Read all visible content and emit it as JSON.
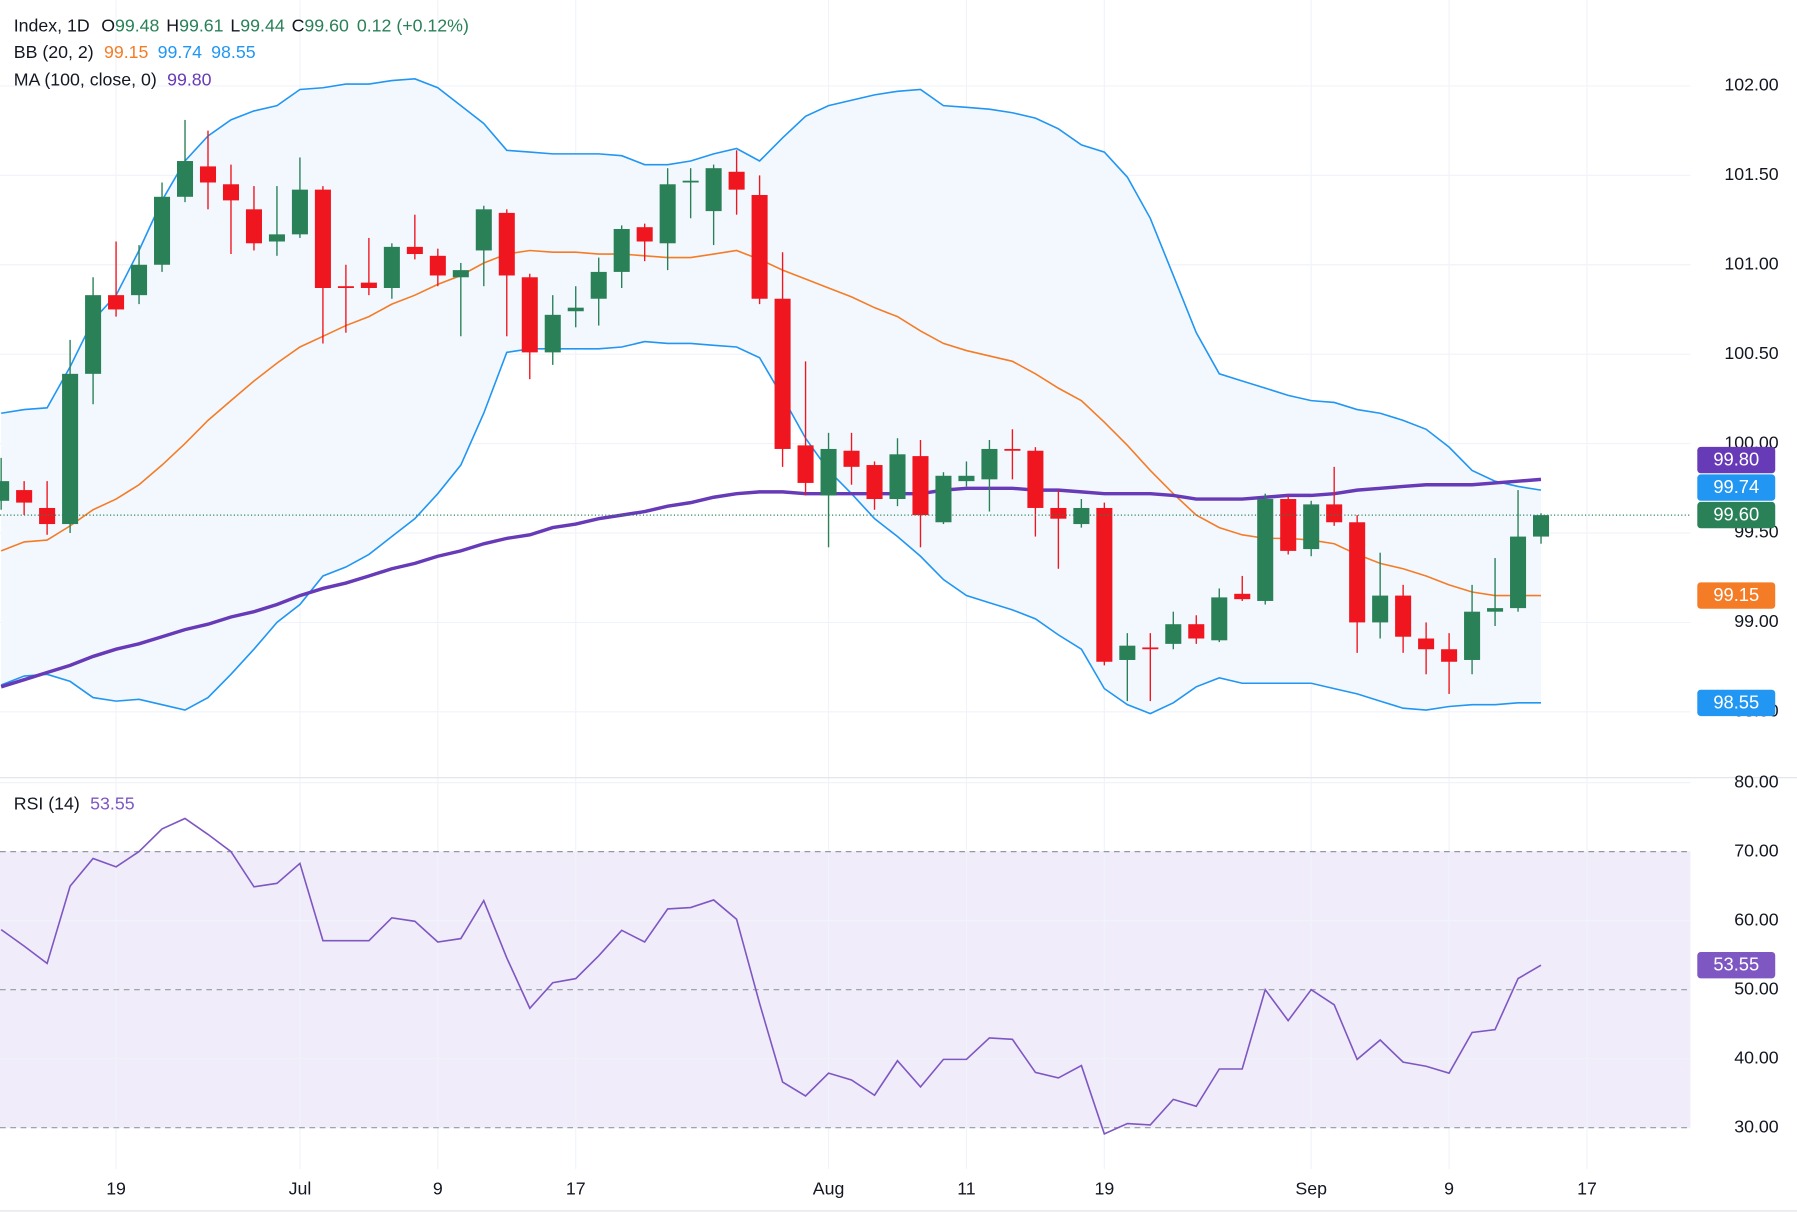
{
  "header": {
    "symbol": "Index, 1D",
    "ohlc": [
      {
        "key": "O",
        "value": "99.48"
      },
      {
        "key": "H",
        "value": "99.61"
      },
      {
        "key": "L",
        "value": "99.44"
      },
      {
        "key": "C",
        "value": "99.60"
      }
    ],
    "change": "0.12 (+0.12%)"
  },
  "chart_data": [
    {
      "type": "candlestick",
      "xlim": [
        -0.05,
        73.5
      ],
      "xticks": [
        {
          "value": 5,
          "label": "19"
        },
        {
          "value": 13,
          "label": "Jul"
        },
        {
          "value": 19,
          "label": "9"
        },
        {
          "value": 25,
          "label": "17"
        },
        {
          "value": 36,
          "label": "Aug"
        },
        {
          "value": 42,
          "label": "11"
        },
        {
          "value": 48,
          "label": "19"
        },
        {
          "value": 57,
          "label": "Sep"
        },
        {
          "value": 63,
          "label": "9"
        },
        {
          "value": 69,
          "label": "17"
        }
      ],
      "ylim": [
        98.135,
        102.48
      ],
      "yticks": [
        {
          "value": 98.5,
          "label": "98.50"
        },
        {
          "value": 99,
          "label": "99.00"
        },
        {
          "value": 99.5,
          "label": "99.50"
        },
        {
          "value": 100,
          "label": "100.00"
        },
        {
          "value": 100.5,
          "label": "100.50"
        },
        {
          "value": 101,
          "label": "101.00"
        },
        {
          "value": 101.5,
          "label": "101.50"
        },
        {
          "value": 102,
          "label": "102.00"
        }
      ],
      "grid": true,
      "up_color": "#2a8158",
      "down_color": "#f0161f",
      "last_price_line": true,
      "open": [
        99.68,
        99.74,
        99.64,
        99.55,
        100.39,
        100.83,
        100.83,
        101.0,
        101.38,
        101.55,
        101.45,
        101.31,
        101.13,
        101.17,
        101.42,
        100.88,
        100.9,
        100.87,
        101.1,
        101.05,
        100.93,
        101.08,
        101.29,
        100.93,
        100.51,
        100.74,
        100.81,
        100.96,
        101.21,
        101.12,
        101.46,
        101.3,
        101.52,
        101.39,
        100.81,
        99.99,
        99.71,
        99.96,
        99.88,
        99.69,
        99.93,
        99.56,
        99.79,
        99.8,
        99.97,
        99.96,
        99.64,
        99.55,
        99.64,
        98.79,
        98.86,
        98.88,
        98.99,
        98.9,
        99.16,
        99.12,
        99.69,
        99.41,
        99.66,
        99.56,
        99.0,
        99.15,
        98.91,
        98.85,
        98.79,
        99.06,
        99.08,
        99.48
      ],
      "high": [
        99.92,
        99.79,
        99.79,
        100.58,
        100.93,
        101.13,
        101.11,
        101.46,
        101.81,
        101.75,
        101.56,
        101.44,
        101.44,
        101.6,
        101.44,
        101.0,
        101.15,
        101.12,
        101.28,
        101.09,
        101.01,
        101.33,
        101.31,
        100.95,
        100.83,
        100.88,
        101.04,
        101.22,
        101.23,
        101.54,
        101.54,
        101.56,
        101.64,
        101.5,
        101.07,
        100.46,
        100.06,
        100.06,
        99.9,
        100.03,
        100.02,
        99.84,
        99.9,
        100.02,
        100.08,
        99.98,
        99.74,
        99.69,
        99.67,
        98.94,
        98.94,
        99.06,
        99.04,
        99.19,
        99.26,
        99.72,
        99.71,
        99.68,
        99.87,
        99.6,
        99.39,
        99.21,
        99.0,
        98.94,
        99.21,
        99.36,
        99.74,
        99.61
      ],
      "low": [
        99.63,
        99.6,
        99.49,
        99.5,
        100.22,
        100.71,
        100.78,
        100.96,
        101.35,
        101.31,
        101.06,
        101.08,
        101.05,
        101.15,
        100.56,
        100.62,
        100.83,
        100.81,
        101.03,
        100.88,
        100.6,
        100.88,
        100.6,
        100.36,
        100.44,
        100.65,
        100.66,
        100.87,
        101.02,
        100.97,
        101.26,
        101.11,
        101.28,
        100.78,
        99.87,
        99.71,
        99.42,
        99.77,
        99.63,
        99.65,
        99.42,
        99.55,
        99.76,
        99.62,
        99.8,
        99.48,
        99.3,
        99.53,
        98.76,
        98.56,
        98.56,
        98.85,
        98.88,
        98.89,
        99.12,
        99.1,
        99.38,
        99.37,
        99.54,
        98.83,
        98.91,
        98.83,
        98.71,
        98.6,
        98.71,
        98.98,
        99.06,
        99.44
      ],
      "close": [
        99.79,
        99.67,
        99.55,
        100.39,
        100.83,
        100.75,
        101.0,
        101.38,
        101.58,
        101.46,
        101.36,
        101.12,
        101.17,
        101.42,
        100.87,
        100.87,
        100.87,
        101.1,
        101.06,
        100.94,
        100.97,
        101.31,
        100.94,
        100.51,
        100.72,
        100.76,
        100.96,
        101.2,
        101.13,
        101.45,
        101.47,
        101.54,
        101.42,
        100.81,
        99.97,
        99.78,
        99.97,
        99.87,
        99.69,
        99.94,
        99.6,
        99.82,
        99.82,
        99.97,
        99.96,
        99.64,
        99.58,
        99.64,
        98.78,
        98.87,
        98.85,
        98.99,
        98.91,
        99.14,
        99.13,
        99.69,
        99.4,
        99.66,
        99.56,
        99.0,
        99.15,
        98.92,
        98.85,
        98.78,
        99.06,
        99.08,
        99.48,
        99.6
      ],
      "band_fill": "#f3f8fe",
      "indicators": [
        {
          "name": "BB (20, 2)",
          "lines": [
            {
              "color": "#f57c26",
              "last_label": "99.15",
              "values": [
                99.4,
                99.45,
                99.46,
                99.54,
                99.63,
                99.69,
                99.77,
                99.88,
                100.0,
                100.13,
                100.24,
                100.35,
                100.45,
                100.54,
                100.6,
                100.66,
                100.71,
                100.78,
                100.83,
                100.89,
                100.94,
                101.01,
                101.06,
                101.08,
                101.07,
                101.07,
                101.06,
                101.06,
                101.05,
                101.04,
                101.04,
                101.06,
                101.08,
                101.03,
                100.97,
                100.92,
                100.87,
                100.82,
                100.76,
                100.71,
                100.63,
                100.56,
                100.52,
                100.49,
                100.46,
                100.39,
                100.31,
                100.24,
                100.12,
                99.99,
                99.85,
                99.72,
                99.6,
                99.53,
                99.49,
                99.47,
                99.47,
                99.46,
                99.44,
                99.38,
                99.33,
                99.3,
                99.26,
                99.21,
                99.17,
                99.15,
                99.15,
                99.15
              ]
            },
            {
              "color": "#2196f3",
              "last_label": "99.74",
              "values": [
                100.17,
                100.19,
                100.2,
                100.43,
                100.69,
                100.83,
                101.08,
                101.36,
                101.58,
                101.72,
                101.81,
                101.86,
                101.89,
                101.98,
                101.99,
                102.01,
                102.01,
                102.03,
                102.04,
                101.99,
                101.89,
                101.79,
                101.64,
                101.63,
                101.62,
                101.62,
                101.62,
                101.61,
                101.56,
                101.56,
                101.58,
                101.62,
                101.65,
                101.58,
                101.71,
                101.83,
                101.89,
                101.92,
                101.95,
                101.97,
                101.98,
                101.89,
                101.88,
                101.87,
                101.85,
                101.82,
                101.76,
                101.67,
                101.63,
                101.49,
                101.26,
                100.94,
                100.62,
                100.39,
                100.35,
                100.31,
                100.27,
                100.24,
                100.23,
                100.19,
                100.17,
                100.13,
                100.08,
                99.98,
                99.85,
                99.79,
                99.76,
                99.74
              ]
            },
            {
              "color": "#2196f3",
              "last_label": "98.55",
              "values": [
                98.65,
                98.7,
                98.71,
                98.67,
                98.58,
                98.56,
                98.57,
                98.54,
                98.51,
                98.58,
                98.71,
                98.85,
                99.0,
                99.1,
                99.26,
                99.31,
                99.38,
                99.48,
                99.58,
                99.72,
                99.88,
                100.17,
                100.51,
                100.53,
                100.53,
                100.53,
                100.53,
                100.54,
                100.57,
                100.56,
                100.56,
                100.55,
                100.54,
                100.48,
                100.26,
                100.03,
                99.85,
                99.72,
                99.58,
                99.48,
                99.37,
                99.24,
                99.15,
                99.11,
                99.07,
                99.02,
                98.93,
                98.85,
                98.63,
                98.54,
                98.49,
                98.55,
                98.64,
                98.69,
                98.66,
                98.66,
                98.66,
                98.66,
                98.63,
                98.6,
                98.56,
                98.52,
                98.51,
                98.53,
                98.54,
                98.54,
                98.55,
                98.55
              ]
            }
          ]
        },
        {
          "name": "MA (100, close, 0)",
          "lines": [
            {
              "color": "#673ab7",
              "last_label": "99.80",
              "values": [
                98.64,
                98.68,
                98.72,
                98.76,
                98.81,
                98.85,
                98.88,
                98.92,
                98.96,
                98.99,
                99.03,
                99.06,
                99.1,
                99.15,
                99.19,
                99.22,
                99.26,
                99.3,
                99.33,
                99.37,
                99.4,
                99.44,
                99.47,
                99.49,
                99.53,
                99.55,
                99.58,
                99.6,
                99.62,
                99.65,
                99.67,
                99.7,
                99.72,
                99.73,
                99.73,
                99.72,
                99.72,
                99.72,
                99.72,
                99.72,
                99.72,
                99.74,
                99.75,
                99.75,
                99.75,
                99.74,
                99.74,
                99.73,
                99.72,
                99.72,
                99.72,
                99.71,
                99.69,
                99.69,
                99.69,
                99.7,
                99.71,
                99.71,
                99.72,
                99.74,
                99.75,
                99.76,
                99.77,
                99.77,
                99.77,
                99.78,
                99.79,
                99.8
              ]
            }
          ]
        }
      ]
    },
    {
      "type": "line",
      "name": "RSI (14)",
      "color": "#7e57c2",
      "last_label": "53.55",
      "ylim": [
        24,
        80.8
      ],
      "yticks": [
        {
          "value": 30,
          "label": "30.00"
        },
        {
          "value": 40,
          "label": "40.00"
        },
        {
          "value": 50,
          "label": "50.00"
        },
        {
          "value": 60,
          "label": "60.00"
        },
        {
          "value": 70,
          "label": "70.00"
        },
        {
          "value": 80,
          "label": "80.00"
        }
      ],
      "bands": [
        30,
        70
      ],
      "midline": 50,
      "band_fill": "#f1ecf9",
      "values": [
        58.7,
        56.3,
        53.8,
        65.0,
        69.0,
        67.8,
        70.0,
        73.3,
        74.8,
        72.5,
        70.0,
        64.9,
        65.4,
        68.3,
        57.1,
        57.1,
        57.1,
        60.4,
        59.9,
        56.9,
        57.4,
        62.9,
        54.6,
        47.3,
        51.0,
        51.6,
        54.9,
        58.6,
        56.9,
        61.7,
        61.9,
        63.0,
        60.2,
        48.0,
        36.6,
        34.6,
        37.9,
        36.9,
        34.7,
        39.7,
        35.9,
        39.9,
        39.9,
        43.0,
        42.8,
        38.0,
        37.2,
        39.0,
        29.1,
        30.6,
        30.4,
        34.1,
        33.1,
        38.5,
        38.5,
        50.0,
        45.5,
        50.0,
        47.8,
        39.9,
        42.7,
        39.5,
        38.9,
        37.9,
        43.8,
        44.2,
        51.6,
        53.55
      ]
    }
  ]
}
